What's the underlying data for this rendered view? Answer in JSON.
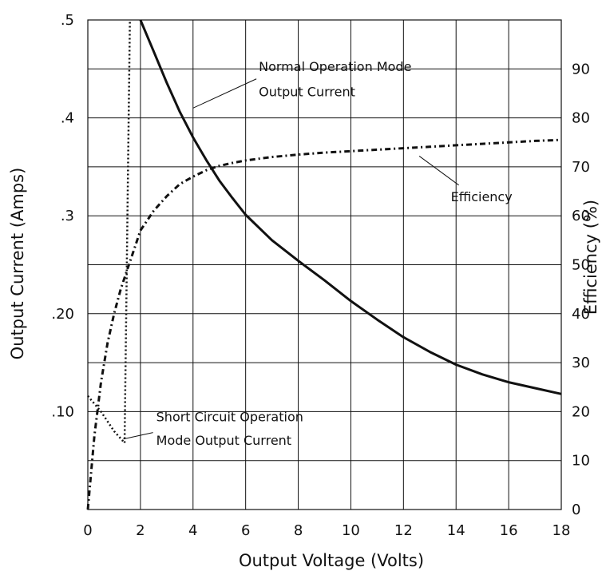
{
  "chart_data": {
    "type": "line",
    "title": "",
    "xlabel": "Output Voltage (Volts)",
    "ylabel": "Output Current (Amps)",
    "y2label": "Efficiency (%)",
    "xlim": [
      0,
      18
    ],
    "ylim": [
      0,
      0.5
    ],
    "y2lim": [
      0,
      100
    ],
    "grid": true,
    "x_ticks": [
      0,
      2,
      4,
      6,
      8,
      10,
      12,
      14,
      16,
      18
    ],
    "x_tick_labels": [
      "0",
      "2",
      "4",
      "6",
      "8",
      "10",
      "12",
      "14",
      "16",
      "18"
    ],
    "y_ticks": [
      0.1,
      0.2,
      0.3,
      0.4,
      0.5
    ],
    "y_tick_labels": [
      ".10",
      ".20",
      ".3",
      ".4",
      ".5"
    ],
    "y2_ticks": [
      0,
      10,
      20,
      30,
      40,
      50,
      60,
      70,
      80,
      90
    ],
    "y2_tick_labels": [
      "0",
      "10",
      "20",
      "30",
      "40",
      "50",
      "60",
      "70",
      "80",
      "90"
    ],
    "series": [
      {
        "axis": "left",
        "style": "solid",
        "x": [
          2.0,
          2.5,
          3,
          3.5,
          4,
          4.5,
          5,
          5.5,
          6,
          7,
          8,
          9,
          10,
          11,
          12,
          13,
          14,
          15,
          16,
          17,
          18
        ],
        "y": [
          0.5,
          0.468,
          0.436,
          0.406,
          0.38,
          0.357,
          0.336,
          0.318,
          0.301,
          0.275,
          0.254,
          0.234,
          0.213,
          0.194,
          0.176,
          0.161,
          0.148,
          0.138,
          0.13,
          0.124,
          0.118
        ]
      },
      {
        "axis": "left",
        "style": "dotted",
        "x": [
          0,
          0.5,
          1.0,
          1.4,
          1.4,
          1.6
        ],
        "y": [
          0.116,
          0.1,
          0.08,
          0.068,
          0.072,
          0.5
        ]
      },
      {
        "axis": "right",
        "style": "dashdot",
        "x": [
          0,
          0.25,
          0.5,
          0.75,
          1.0,
          1.25,
          1.5,
          1.75,
          2.0,
          2.5,
          3.0,
          3.5,
          4.0,
          4.5,
          5.0,
          5.5,
          6.0,
          7.0,
          8.0,
          9.0,
          10.0,
          11.0,
          12.0,
          13.0,
          14.0,
          15.0,
          16.0,
          17.0,
          18.0
        ],
        "y": [
          0,
          15,
          26,
          34,
          40,
          45,
          49,
          53,
          57,
          61,
          64,
          66.5,
          68,
          69.3,
          70.2,
          70.8,
          71.3,
          72,
          72.5,
          72.9,
          73.2,
          73.5,
          73.8,
          74.1,
          74.4,
          74.7,
          75,
          75.3,
          75.5
        ]
      }
    ],
    "annotations": [
      {
        "text": "Normal Operation Mode",
        "point": [
          4.0,
          0.41
        ],
        "text_at": [
          6.5,
          0.448
        ]
      },
      {
        "text": "Output Current",
        "point": [
          4.0,
          0.41
        ],
        "text_at": [
          6.5,
          0.422
        ]
      },
      {
        "text": "Efficiency",
        "point": [
          12.6,
          72.2
        ],
        "text_at": [
          13.8,
          63
        ],
        "axis": "right"
      },
      {
        "text": "Short Circuit Operation",
        "point": [
          1.35,
          0.072
        ],
        "text_at": [
          2.6,
          0.09
        ]
      },
      {
        "text": "Mode Output Current",
        "point": [
          1.35,
          0.072
        ],
        "text_at": [
          2.6,
          0.066
        ]
      }
    ]
  }
}
